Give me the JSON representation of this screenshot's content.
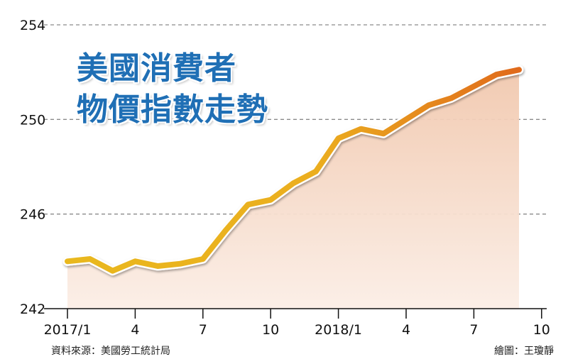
{
  "title": {
    "line1": "美國消費者",
    "line2": "物價指數走勢"
  },
  "source": "資料來源：美國勞工統計局",
  "credit": "繪圖：王瓊靜",
  "colors": {
    "title": "#1f6fb5",
    "line_start": "#e9b81e",
    "line_end": "#e06a1c",
    "area_fill": "#f4dccb",
    "grid": "#8a8a8a"
  },
  "chart_data": {
    "type": "area",
    "title": "美國消費者物價指數走勢",
    "xlabel": "",
    "ylabel": "",
    "ylim": [
      242,
      254
    ],
    "yticks": [
      242,
      246,
      250,
      254
    ],
    "xtick_labels": [
      "2017/1",
      "4",
      "7",
      "10",
      "2018/1",
      "4",
      "7",
      "10"
    ],
    "grid": "horizontal dashed",
    "series": [
      {
        "x": [
          "2017/1",
          "2017/2",
          "2017/3",
          "2017/4",
          "2017/5",
          "2017/6",
          "2017/7",
          "2017/8",
          "2017/9",
          "2017/10",
          "2017/11",
          "2017/12",
          "2018/1",
          "2018/2",
          "2018/3",
          "2018/4",
          "2018/5",
          "2018/6",
          "2018/7",
          "2018/8",
          "2018/9"
        ],
        "values": [
          244.0,
          244.1,
          243.6,
          244.0,
          243.8,
          243.9,
          244.1,
          245.3,
          246.4,
          246.6,
          247.3,
          247.8,
          249.2,
          249.6,
          249.4,
          250.0,
          250.6,
          250.9,
          251.4,
          251.9,
          252.1
        ]
      }
    ]
  }
}
